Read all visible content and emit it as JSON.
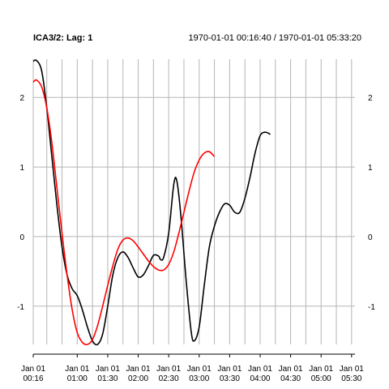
{
  "chart_data": {
    "type": "line",
    "title": "ICA3/2:  Lag: 1",
    "date_range": "1970-01-01 00:16:40 / 1970-01-01 05:33:20",
    "xlabel": "",
    "ylabel": "",
    "xlim": [
      "1970-01-01 00:16:40",
      "1970-01-01 05:33:20"
    ],
    "ylim": [
      -1.55,
      2.55
    ],
    "y_ticks": [
      -1,
      0,
      1,
      2
    ],
    "y_tick_labels": [
      "-1",
      "0",
      "1",
      "2"
    ],
    "x_ticks": [
      {
        "time": "1970-01-01 00:16:40",
        "line1": "Jan 01",
        "line2": "00:16"
      },
      {
        "time": "1970-01-01 01:00:00",
        "line1": "Jan 01",
        "line2": "01:00"
      },
      {
        "time": "1970-01-01 01:30:00",
        "line1": "Jan 01",
        "line2": "01:30"
      },
      {
        "time": "1970-01-01 02:00:00",
        "line1": "Jan 01",
        "line2": "02:00"
      },
      {
        "time": "1970-01-01 02:30:00",
        "line1": "Jan 01",
        "line2": "02:30"
      },
      {
        "time": "1970-01-01 03:00:00",
        "line1": "Jan 01",
        "line2": "03:00"
      },
      {
        "time": "1970-01-01 03:30:00",
        "line1": "Jan 01",
        "line2": "03:30"
      },
      {
        "time": "1970-01-01 04:00:00",
        "line1": "Jan 01",
        "line2": "04:00"
      },
      {
        "time": "1970-01-01 04:30:00",
        "line1": "Jan 01",
        "line2": "04:30"
      },
      {
        "time": "1970-01-01 05:00:00",
        "line1": "Jan 01",
        "line2": "05:00"
      },
      {
        "time": "1970-01-01 05:30:00",
        "line1": "Jan 01",
        "line2": "05:30"
      }
    ],
    "grid_x": [
      "1970-01-01 00:16:40",
      "1970-01-01 00:30:00",
      "1970-01-01 00:45:00",
      "1970-01-01 01:00:00",
      "1970-01-01 01:15:00",
      "1970-01-01 01:30:00",
      "1970-01-01 01:45:00",
      "1970-01-01 02:00:00",
      "1970-01-01 02:15:00",
      "1970-01-01 02:30:00",
      "1970-01-01 02:45:00",
      "1970-01-01 03:00:00",
      "1970-01-01 03:15:00",
      "1970-01-01 03:30:00",
      "1970-01-01 03:45:00",
      "1970-01-01 04:00:00",
      "1970-01-01 04:15:00",
      "1970-01-01 04:30:00",
      "1970-01-01 04:45:00",
      "1970-01-01 05:00:00",
      "1970-01-01 05:15:00",
      "1970-01-01 05:30:00"
    ],
    "grid": true,
    "series": [
      {
        "color": "#000000",
        "points": [
          [
            "1970-01-01 00:16:40",
            2.52
          ],
          [
            "1970-01-01 00:20:00",
            2.53
          ],
          [
            "1970-01-01 00:25:00",
            2.38
          ],
          [
            "1970-01-01 00:30:00",
            1.85
          ],
          [
            "1970-01-01 00:35:00",
            1.15
          ],
          [
            "1970-01-01 00:40:00",
            0.45
          ],
          [
            "1970-01-01 00:45:00",
            -0.15
          ],
          [
            "1970-01-01 00:50:00",
            -0.55
          ],
          [
            "1970-01-01 00:55:00",
            -0.75
          ],
          [
            "1970-01-01 01:00:00",
            -0.85
          ],
          [
            "1970-01-01 01:05:00",
            -1.05
          ],
          [
            "1970-01-01 01:10:00",
            -1.3
          ],
          [
            "1970-01-01 01:15:00",
            -1.5
          ],
          [
            "1970-01-01 01:20:00",
            -1.55
          ],
          [
            "1970-01-01 01:25:00",
            -1.4
          ],
          [
            "1970-01-01 01:30:00",
            -1.0
          ],
          [
            "1970-01-01 01:35:00",
            -0.55
          ],
          [
            "1970-01-01 01:40:00",
            -0.3
          ],
          [
            "1970-01-01 01:45:00",
            -0.22
          ],
          [
            "1970-01-01 01:50:00",
            -0.3
          ],
          [
            "1970-01-01 01:55:00",
            -0.45
          ],
          [
            "1970-01-01 02:00:00",
            -0.58
          ],
          [
            "1970-01-01 02:05:00",
            -0.55
          ],
          [
            "1970-01-01 02:10:00",
            -0.42
          ],
          [
            "1970-01-01 02:15:00",
            -0.27
          ],
          [
            "1970-01-01 02:20:00",
            -0.28
          ],
          [
            "1970-01-01 02:22:00",
            -0.33
          ],
          [
            "1970-01-01 02:25:00",
            -0.3
          ],
          [
            "1970-01-01 02:30:00",
            0.05
          ],
          [
            "1970-01-01 02:35:00",
            0.75
          ],
          [
            "1970-01-01 02:38:00",
            0.8
          ],
          [
            "1970-01-01 02:42:00",
            0.3
          ],
          [
            "1970-01-01 02:47:00",
            -0.6
          ],
          [
            "1970-01-01 02:52:00",
            -1.35
          ],
          [
            "1970-01-01 02:55:00",
            -1.5
          ],
          [
            "1970-01-01 03:00:00",
            -1.3
          ],
          [
            "1970-01-01 03:05:00",
            -0.7
          ],
          [
            "1970-01-01 03:10:00",
            -0.15
          ],
          [
            "1970-01-01 03:15:00",
            0.15
          ],
          [
            "1970-01-01 03:20:00",
            0.35
          ],
          [
            "1970-01-01 03:25:00",
            0.47
          ],
          [
            "1970-01-01 03:30:00",
            0.45
          ],
          [
            "1970-01-01 03:35:00",
            0.35
          ],
          [
            "1970-01-01 03:40:00",
            0.35
          ],
          [
            "1970-01-01 03:45:00",
            0.55
          ],
          [
            "1970-01-01 03:50:00",
            0.85
          ],
          [
            "1970-01-01 03:55:00",
            1.2
          ],
          [
            "1970-01-01 04:00:00",
            1.45
          ],
          [
            "1970-01-01 04:05:00",
            1.5
          ],
          [
            "1970-01-01 04:10:00",
            1.47
          ]
        ]
      },
      {
        "color": "#ff0000",
        "points": [
          [
            "1970-01-01 00:16:40",
            2.22
          ],
          [
            "1970-01-01 00:20:00",
            2.25
          ],
          [
            "1970-01-01 00:25:00",
            2.15
          ],
          [
            "1970-01-01 00:30:00",
            1.85
          ],
          [
            "1970-01-01 00:35:00",
            1.35
          ],
          [
            "1970-01-01 00:40:00",
            0.7
          ],
          [
            "1970-01-01 00:45:00",
            0.05
          ],
          [
            "1970-01-01 00:50:00",
            -0.55
          ],
          [
            "1970-01-01 00:55:00",
            -1.05
          ],
          [
            "1970-01-01 01:00:00",
            -1.38
          ],
          [
            "1970-01-01 01:05:00",
            -1.52
          ],
          [
            "1970-01-01 01:10:00",
            -1.55
          ],
          [
            "1970-01-01 01:15:00",
            -1.48
          ],
          [
            "1970-01-01 01:20:00",
            -1.28
          ],
          [
            "1970-01-01 01:25:00",
            -1.0
          ],
          [
            "1970-01-01 01:30:00",
            -0.7
          ],
          [
            "1970-01-01 01:35:00",
            -0.42
          ],
          [
            "1970-01-01 01:40:00",
            -0.18
          ],
          [
            "1970-01-01 01:45:00",
            -0.05
          ],
          [
            "1970-01-01 01:50:00",
            -0.02
          ],
          [
            "1970-01-01 01:55:00",
            -0.06
          ],
          [
            "1970-01-01 02:00:00",
            -0.15
          ],
          [
            "1970-01-01 02:05:00",
            -0.25
          ],
          [
            "1970-01-01 02:10:00",
            -0.35
          ],
          [
            "1970-01-01 02:15:00",
            -0.43
          ],
          [
            "1970-01-01 02:20:00",
            -0.48
          ],
          [
            "1970-01-01 02:25:00",
            -0.48
          ],
          [
            "1970-01-01 02:30:00",
            -0.4
          ],
          [
            "1970-01-01 02:35:00",
            -0.22
          ],
          [
            "1970-01-01 02:40:00",
            0.05
          ],
          [
            "1970-01-01 02:45:00",
            0.35
          ],
          [
            "1970-01-01 02:50:00",
            0.65
          ],
          [
            "1970-01-01 02:55:00",
            0.92
          ],
          [
            "1970-01-01 03:00:00",
            1.1
          ],
          [
            "1970-01-01 03:05:00",
            1.2
          ],
          [
            "1970-01-01 03:10:00",
            1.22
          ],
          [
            "1970-01-01 03:15:00",
            1.15
          ]
        ]
      }
    ]
  }
}
